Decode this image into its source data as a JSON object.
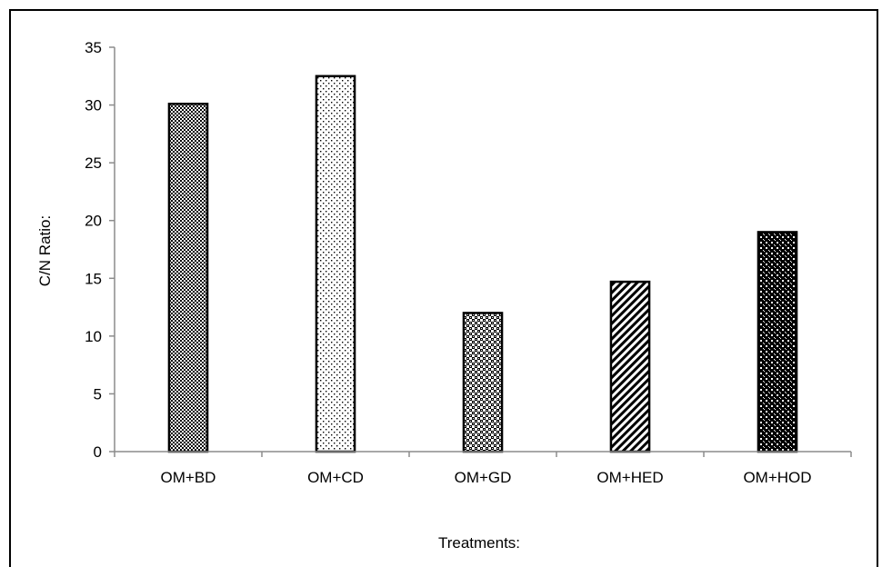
{
  "chart_data": {
    "type": "bar",
    "categories": [
      "OM+BD",
      "OM+CD",
      "OM+GD",
      "OM+HED",
      "OM+HOD"
    ],
    "values": [
      30.1,
      32.5,
      12.0,
      14.7,
      19.0
    ],
    "title": "",
    "xlabel": "Treatments:",
    "ylabel": "C/N Ratio:",
    "ylim": [
      0,
      35
    ],
    "yticks": [
      0,
      5,
      10,
      15,
      20,
      25,
      30,
      35
    ],
    "grid": false,
    "legend": "none",
    "bar_fill_patterns": [
      "fine-checker",
      "sparse-dots",
      "dense-dots",
      "diagonal-stripes",
      "diamond-lattice"
    ],
    "colors": {
      "bar_edge": "#000000",
      "axis": "#8c8c8c",
      "text": "#000000"
    }
  }
}
